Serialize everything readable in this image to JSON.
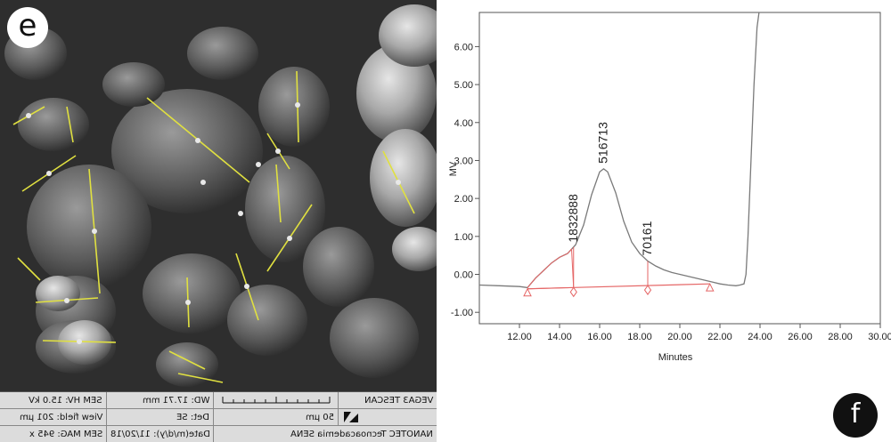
{
  "panel_e": {
    "badge": "e",
    "info": {
      "row1": {
        "c1": "SEM HV: 15.0 kV",
        "c2": "WD: 17.71 mm",
        "c3": "",
        "c4": "VEGA3 TESCAN"
      },
      "row2": {
        "c1": "View field: 201 µm",
        "c2": "Det: SE",
        "c3": "50 µm",
        "c4": ""
      },
      "row3": {
        "c1": "SEM MAG: 945 x",
        "c2": "Date(m/d/y): 11/20/18",
        "c3": "NANOTEC Tecnoacademia SENA",
        "c4": ""
      }
    }
  },
  "panel_f": {
    "badge": "f",
    "chart_data": {
      "type": "line",
      "title": "",
      "xlabel": "Minutes",
      "ylabel": "MV",
      "xlim": [
        10.0,
        30.0
      ],
      "ylim": [
        -1.3,
        6.9
      ],
      "x_ticks": [
        "12.00",
        "14.00",
        "16.00",
        "18.00",
        "20.00",
        "22.00",
        "24.00",
        "26.00",
        "28.00",
        "30.00"
      ],
      "y_ticks": [
        "-1.00",
        "0.00",
        "1.00",
        "2.00",
        "3.00",
        "4.00",
        "5.00",
        "6.00"
      ],
      "series": [
        {
          "color": "#7a7a7a",
          "x": [
            10.0,
            11.0,
            12.0,
            12.4,
            12.8,
            13.2,
            13.6,
            14.0,
            14.4,
            14.8,
            15.2,
            15.6,
            16.0,
            16.2,
            16.4,
            16.8,
            17.2,
            17.6,
            18.0,
            18.4,
            18.8,
            19.2,
            19.6,
            20.0,
            20.4,
            20.8,
            21.2,
            21.6,
            22.0,
            22.4,
            22.8,
            23.0,
            23.2,
            23.3,
            23.4,
            23.55,
            23.7,
            23.85,
            23.95
          ],
          "y": [
            -0.28,
            -0.3,
            -0.32,
            -0.35,
            -0.1,
            0.1,
            0.3,
            0.45,
            0.55,
            0.78,
            1.3,
            2.1,
            2.7,
            2.78,
            2.7,
            2.15,
            1.4,
            0.85,
            0.55,
            0.35,
            0.22,
            0.12,
            0.05,
            0.0,
            -0.05,
            -0.1,
            -0.15,
            -0.2,
            -0.25,
            -0.28,
            -0.3,
            -0.28,
            -0.25,
            0.0,
            1.0,
            3.0,
            5.0,
            6.5,
            6.9
          ]
        },
        {
          "color": "#e56666",
          "x": [
            12.4,
            21.5
          ],
          "y": [
            -0.38,
            -0.25
          ]
        }
      ],
      "markers": {
        "color": "#e56666",
        "triangles_x": [
          12.4,
          21.5
        ],
        "diamonds_x": [
          14.7,
          18.4
        ],
        "drops_x": [
          14.7,
          18.4
        ]
      },
      "peak_labels": [
        {
          "x": 14.7,
          "y": 0.7,
          "text": "1832888"
        },
        {
          "x": 16.2,
          "y": 2.78,
          "text": "516713"
        },
        {
          "x": 18.4,
          "y": 0.35,
          "text": "70161"
        }
      ]
    }
  }
}
